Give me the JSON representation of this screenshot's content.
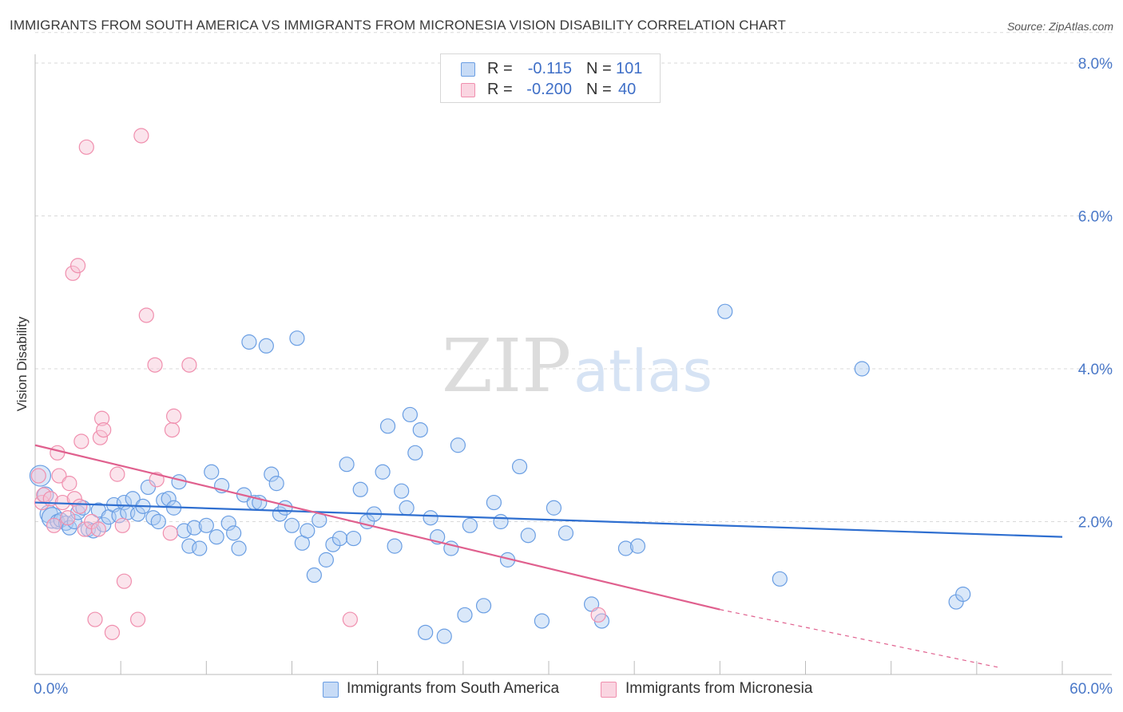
{
  "title": "IMMIGRANTS FROM SOUTH AMERICA VS IMMIGRANTS FROM MICRONESIA VISION DISABILITY CORRELATION CHART",
  "source": "Source: ZipAtlas.com",
  "watermark": {
    "zip": "ZIP",
    "atlas": "atlas"
  },
  "colors": {
    "blue": "#6a9ee3",
    "blue_fill": "#aecbf1",
    "blue_line": "#2f6fd0",
    "pink": "#f08fae",
    "pink_fill": "#f7c3d4",
    "pink_line": "#e0608e",
    "grid": "#d9d9d9",
    "tick_text": "#4a78c8"
  },
  "legend_top": {
    "rows": [
      {
        "r_label": "R =",
        "r_value": "-0.115",
        "n_label": "N =",
        "n_value": "101"
      },
      {
        "r_label": "R =",
        "r_value": "-0.200",
        "n_label": "N =",
        "n_value": "40"
      }
    ]
  },
  "legend_bottom": {
    "items": [
      {
        "label": "Immigrants from South America"
      },
      {
        "label": "Immigrants from Micronesia"
      }
    ]
  },
  "chart_data": {
    "type": "scatter",
    "title": "IMMIGRANTS FROM SOUTH AMERICA VS IMMIGRANTS FROM MICRONESIA VISION DISABILITY CORRELATION CHART",
    "xlabel": "",
    "ylabel": "Vision Disability",
    "xlim": [
      0,
      60
    ],
    "ylim": [
      0,
      8.4
    ],
    "x_tick_labels": [
      "0.0%",
      "60.0%"
    ],
    "y_ticks": [
      2,
      4,
      6,
      8
    ],
    "y_tick_labels": [
      "2.0%",
      "4.0%",
      "6.0%",
      "8.0%"
    ],
    "grid": true,
    "series": [
      {
        "name": "Immigrants from South America",
        "color": "blue",
        "r": "-0.115",
        "n": "101",
        "trend": {
          "x": [
            0,
            60
          ],
          "y": [
            2.25,
            1.8
          ]
        },
        "points": [
          {
            "x": 0.3,
            "y": 2.6,
            "s": 13
          },
          {
            "x": 0.6,
            "y": 2.35,
            "s": 10
          },
          {
            "x": 0.8,
            "y": 2.1,
            "s": 11
          },
          {
            "x": 1.0,
            "y": 2.05,
            "s": 13
          },
          {
            "x": 1.3,
            "y": 2.0,
            "s": 9
          },
          {
            "x": 1.5,
            "y": 2.02,
            "s": 9
          },
          {
            "x": 1.8,
            "y": 1.98,
            "s": 9
          },
          {
            "x": 2.0,
            "y": 1.92,
            "s": 9
          },
          {
            "x": 2.3,
            "y": 2.0,
            "s": 9
          },
          {
            "x": 2.5,
            "y": 2.12,
            "s": 9
          },
          {
            "x": 2.8,
            "y": 2.18,
            "s": 9
          },
          {
            "x": 3.1,
            "y": 1.9,
            "s": 9
          },
          {
            "x": 3.4,
            "y": 1.88,
            "s": 9
          },
          {
            "x": 3.7,
            "y": 2.15,
            "s": 9
          },
          {
            "x": 4.0,
            "y": 1.96,
            "s": 9
          },
          {
            "x": 4.3,
            "y": 2.06,
            "s": 9
          },
          {
            "x": 4.6,
            "y": 2.22,
            "s": 9
          },
          {
            "x": 4.9,
            "y": 2.08,
            "s": 9
          },
          {
            "x": 5.2,
            "y": 2.25,
            "s": 9
          },
          {
            "x": 5.4,
            "y": 2.12,
            "s": 9
          },
          {
            "x": 5.7,
            "y": 2.3,
            "s": 9
          },
          {
            "x": 6.0,
            "y": 2.1,
            "s": 9
          },
          {
            "x": 6.3,
            "y": 2.2,
            "s": 9
          },
          {
            "x": 6.6,
            "y": 2.45,
            "s": 9
          },
          {
            "x": 6.9,
            "y": 2.05,
            "s": 9
          },
          {
            "x": 7.2,
            "y": 2.0,
            "s": 9
          },
          {
            "x": 7.5,
            "y": 2.28,
            "s": 9
          },
          {
            "x": 7.8,
            "y": 2.3,
            "s": 9
          },
          {
            "x": 8.1,
            "y": 2.18,
            "s": 9
          },
          {
            "x": 8.4,
            "y": 2.52,
            "s": 9
          },
          {
            "x": 8.7,
            "y": 1.88,
            "s": 9
          },
          {
            "x": 9.0,
            "y": 1.68,
            "s": 9
          },
          {
            "x": 9.3,
            "y": 1.92,
            "s": 9
          },
          {
            "x": 9.6,
            "y": 1.65,
            "s": 9
          },
          {
            "x": 10.0,
            "y": 1.95,
            "s": 9
          },
          {
            "x": 10.3,
            "y": 2.65,
            "s": 9
          },
          {
            "x": 10.6,
            "y": 1.8,
            "s": 9
          },
          {
            "x": 10.9,
            "y": 2.47,
            "s": 9
          },
          {
            "x": 11.3,
            "y": 1.98,
            "s": 9
          },
          {
            "x": 11.6,
            "y": 1.85,
            "s": 9
          },
          {
            "x": 11.9,
            "y": 1.65,
            "s": 9
          },
          {
            "x": 12.2,
            "y": 2.35,
            "s": 9
          },
          {
            "x": 12.5,
            "y": 4.35,
            "s": 9
          },
          {
            "x": 12.8,
            "y": 2.25,
            "s": 9
          },
          {
            "x": 13.1,
            "y": 2.25,
            "s": 9
          },
          {
            "x": 13.5,
            "y": 4.3,
            "s": 9
          },
          {
            "x": 13.8,
            "y": 2.62,
            "s": 9
          },
          {
            "x": 14.1,
            "y": 2.5,
            "s": 9
          },
          {
            "x": 14.3,
            "y": 2.1,
            "s": 9
          },
          {
            "x": 14.6,
            "y": 2.18,
            "s": 9
          },
          {
            "x": 15.0,
            "y": 1.95,
            "s": 9
          },
          {
            "x": 15.3,
            "y": 4.4,
            "s": 9
          },
          {
            "x": 15.6,
            "y": 1.72,
            "s": 9
          },
          {
            "x": 15.9,
            "y": 1.88,
            "s": 9
          },
          {
            "x": 16.3,
            "y": 1.3,
            "s": 9
          },
          {
            "x": 16.6,
            "y": 2.02,
            "s": 9
          },
          {
            "x": 17.0,
            "y": 1.5,
            "s": 9
          },
          {
            "x": 17.4,
            "y": 1.7,
            "s": 9
          },
          {
            "x": 17.8,
            "y": 1.78,
            "s": 9
          },
          {
            "x": 18.2,
            "y": 2.75,
            "s": 9
          },
          {
            "x": 18.6,
            "y": 1.78,
            "s": 9
          },
          {
            "x": 19.0,
            "y": 2.42,
            "s": 9
          },
          {
            "x": 19.4,
            "y": 2.0,
            "s": 9
          },
          {
            "x": 19.8,
            "y": 2.1,
            "s": 9
          },
          {
            "x": 20.3,
            "y": 2.65,
            "s": 9
          },
          {
            "x": 20.6,
            "y": 3.25,
            "s": 9
          },
          {
            "x": 21.0,
            "y": 1.68,
            "s": 9
          },
          {
            "x": 21.4,
            "y": 2.4,
            "s": 9
          },
          {
            "x": 21.7,
            "y": 2.18,
            "s": 9
          },
          {
            "x": 21.9,
            "y": 3.4,
            "s": 9
          },
          {
            "x": 22.2,
            "y": 2.9,
            "s": 9
          },
          {
            "x": 22.5,
            "y": 3.2,
            "s": 9
          },
          {
            "x": 22.8,
            "y": 0.55,
            "s": 9
          },
          {
            "x": 23.1,
            "y": 2.05,
            "s": 9
          },
          {
            "x": 23.5,
            "y": 1.8,
            "s": 9
          },
          {
            "x": 23.9,
            "y": 0.5,
            "s": 9
          },
          {
            "x": 24.3,
            "y": 1.65,
            "s": 9
          },
          {
            "x": 24.7,
            "y": 3.0,
            "s": 9
          },
          {
            "x": 25.1,
            "y": 0.78,
            "s": 9
          },
          {
            "x": 25.4,
            "y": 1.95,
            "s": 9
          },
          {
            "x": 26.2,
            "y": 0.9,
            "s": 9
          },
          {
            "x": 26.8,
            "y": 2.25,
            "s": 9
          },
          {
            "x": 27.2,
            "y": 2.0,
            "s": 9
          },
          {
            "x": 27.6,
            "y": 1.5,
            "s": 9
          },
          {
            "x": 28.3,
            "y": 2.72,
            "s": 9
          },
          {
            "x": 28.8,
            "y": 1.82,
            "s": 9
          },
          {
            "x": 29.6,
            "y": 0.7,
            "s": 9
          },
          {
            "x": 30.3,
            "y": 2.18,
            "s": 9
          },
          {
            "x": 31.0,
            "y": 1.85,
            "s": 9
          },
          {
            "x": 32.5,
            "y": 0.92,
            "s": 9
          },
          {
            "x": 33.1,
            "y": 0.7,
            "s": 9
          },
          {
            "x": 34.5,
            "y": 1.65,
            "s": 9
          },
          {
            "x": 35.2,
            "y": 1.68,
            "s": 9
          },
          {
            "x": 40.3,
            "y": 4.75,
            "s": 9
          },
          {
            "x": 43.5,
            "y": 1.25,
            "s": 9
          },
          {
            "x": 48.3,
            "y": 4.0,
            "s": 9
          },
          {
            "x": 53.8,
            "y": 0.95,
            "s": 9
          },
          {
            "x": 54.2,
            "y": 1.05,
            "s": 9
          }
        ]
      },
      {
        "name": "Immigrants from Micronesia",
        "color": "pink",
        "r": "-0.200",
        "n": "40",
        "trend": {
          "x": [
            0,
            40
          ],
          "y": [
            3.0,
            0.85
          ]
        },
        "trend_dashed": {
          "x": [
            40,
            60
          ],
          "y": [
            0.85,
            -0.22
          ]
        },
        "points": [
          {
            "x": 0.2,
            "y": 2.6,
            "s": 9
          },
          {
            "x": 0.4,
            "y": 2.25,
            "s": 9
          },
          {
            "x": 0.5,
            "y": 2.35,
            "s": 9
          },
          {
            "x": 0.9,
            "y": 2.3,
            "s": 9
          },
          {
            "x": 1.1,
            "y": 1.95,
            "s": 9
          },
          {
            "x": 1.3,
            "y": 2.9,
            "s": 9
          },
          {
            "x": 1.4,
            "y": 2.6,
            "s": 9
          },
          {
            "x": 1.6,
            "y": 2.25,
            "s": 9
          },
          {
            "x": 1.9,
            "y": 2.05,
            "s": 9
          },
          {
            "x": 2.0,
            "y": 2.5,
            "s": 9
          },
          {
            "x": 2.2,
            "y": 5.25,
            "s": 9
          },
          {
            "x": 2.3,
            "y": 2.3,
            "s": 9
          },
          {
            "x": 2.5,
            "y": 5.35,
            "s": 9
          },
          {
            "x": 2.6,
            "y": 2.2,
            "s": 9
          },
          {
            "x": 2.7,
            "y": 3.05,
            "s": 9
          },
          {
            "x": 2.9,
            "y": 1.9,
            "s": 9
          },
          {
            "x": 3.0,
            "y": 6.9,
            "s": 9
          },
          {
            "x": 3.3,
            "y": 2.0,
            "s": 9
          },
          {
            "x": 3.5,
            "y": 0.72,
            "s": 9
          },
          {
            "x": 3.7,
            "y": 1.9,
            "s": 9
          },
          {
            "x": 3.8,
            "y": 3.1,
            "s": 9
          },
          {
            "x": 3.9,
            "y": 3.35,
            "s": 9
          },
          {
            "x": 4.0,
            "y": 3.2,
            "s": 9
          },
          {
            "x": 4.5,
            "y": 0.55,
            "s": 9
          },
          {
            "x": 4.8,
            "y": 2.62,
            "s": 9
          },
          {
            "x": 5.1,
            "y": 1.95,
            "s": 9
          },
          {
            "x": 5.2,
            "y": 1.22,
            "s": 9
          },
          {
            "x": 6.0,
            "y": 0.72,
            "s": 9
          },
          {
            "x": 6.2,
            "y": 7.05,
            "s": 9
          },
          {
            "x": 6.5,
            "y": 4.7,
            "s": 9
          },
          {
            "x": 7.0,
            "y": 4.05,
            "s": 9
          },
          {
            "x": 7.1,
            "y": 2.55,
            "s": 9
          },
          {
            "x": 7.9,
            "y": 1.85,
            "s": 9
          },
          {
            "x": 8.0,
            "y": 3.2,
            "s": 9
          },
          {
            "x": 8.1,
            "y": 3.38,
            "s": 9
          },
          {
            "x": 9.0,
            "y": 4.05,
            "s": 9
          },
          {
            "x": 18.4,
            "y": 0.72,
            "s": 9
          },
          {
            "x": 32.9,
            "y": 0.78,
            "s": 9
          }
        ]
      }
    ]
  }
}
